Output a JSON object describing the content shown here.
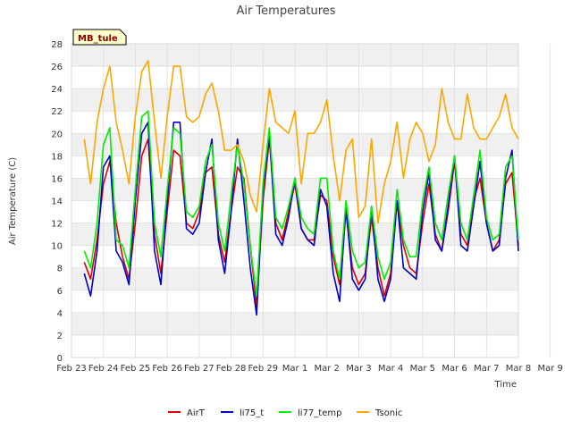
{
  "chart_data": {
    "type": "line",
    "title": "Air Temperatures",
    "xlabel": "Time",
    "ylabel": "Air Temperature (C)",
    "station_label": "MB_tule",
    "ylim": [
      0,
      28
    ],
    "y_ticks": [
      "0",
      "2",
      "4",
      "6",
      "8",
      "10",
      "12",
      "14",
      "16",
      "18",
      "20",
      "22",
      "24",
      "26",
      "28"
    ],
    "xlim": [
      0,
      14
    ],
    "x_ticks": [
      "Feb 23",
      "Feb 24",
      "Feb 25",
      "Feb 26",
      "Feb 27",
      "Feb 28",
      "Feb 29",
      "Mar 1",
      "Mar 2",
      "Mar 3",
      "Mar 4",
      "Mar 5",
      "Mar 6",
      "Mar 7",
      "Mar 8",
      "Mar 9"
    ],
    "grid": true,
    "legend_position": "bottom",
    "series": [
      {
        "name": "AirT",
        "color": "#dd0000",
        "x": [
          0.4,
          0.6,
          0.8,
          1.0,
          1.2,
          1.4,
          1.6,
          1.8,
          2.0,
          2.2,
          2.4,
          2.6,
          2.8,
          3.0,
          3.2,
          3.4,
          3.6,
          3.8,
          4.0,
          4.2,
          4.4,
          4.6,
          4.8,
          5.0,
          5.2,
          5.4,
          5.6,
          5.8,
          6.0,
          6.2,
          6.4,
          6.6,
          6.8,
          7.0,
          7.2,
          7.4,
          7.6,
          7.8,
          8.0,
          8.2,
          8.4,
          8.6,
          8.8,
          9.0,
          9.2,
          9.4,
          9.6,
          9.8,
          10.0,
          10.2,
          10.4,
          10.6,
          10.8,
          11.0,
          11.2,
          11.4,
          11.6,
          11.8,
          12.0,
          12.2,
          12.4,
          12.6,
          12.8,
          13.0,
          13.2,
          13.4,
          13.6,
          13.8,
          14.0
        ],
        "y": [
          8.5,
          7.0,
          10.5,
          15.5,
          17.5,
          12.0,
          9.0,
          7.0,
          12.0,
          18.0,
          19.5,
          11.0,
          7.5,
          13.0,
          18.5,
          18.0,
          12.0,
          11.5,
          13.0,
          16.5,
          17.0,
          11.0,
          8.5,
          13.0,
          17.0,
          16.0,
          10.0,
          4.5,
          14.0,
          19.5,
          12.0,
          10.5,
          13.0,
          15.5,
          11.5,
          10.5,
          10.5,
          14.5,
          14.0,
          9.0,
          6.5,
          13.0,
          8.0,
          6.5,
          7.5,
          12.5,
          8.0,
          5.5,
          7.5,
          14.0,
          10.0,
          8.0,
          7.5,
          12.0,
          15.5,
          11.0,
          9.5,
          13.0,
          17.5,
          11.0,
          10.0,
          14.0,
          16.0,
          12.0,
          9.5,
          10.5,
          15.5,
          16.5,
          10.0
        ]
      },
      {
        "name": "li75_t",
        "color": "#0000cc",
        "x": [
          0.4,
          0.6,
          0.8,
          1.0,
          1.2,
          1.4,
          1.6,
          1.8,
          2.0,
          2.2,
          2.4,
          2.6,
          2.8,
          3.0,
          3.2,
          3.4,
          3.6,
          3.8,
          4.0,
          4.2,
          4.4,
          4.6,
          4.8,
          5.0,
          5.2,
          5.4,
          5.6,
          5.8,
          6.0,
          6.2,
          6.4,
          6.6,
          6.8,
          7.0,
          7.2,
          7.4,
          7.6,
          7.8,
          8.0,
          8.2,
          8.4,
          8.6,
          8.8,
          9.0,
          9.2,
          9.4,
          9.6,
          9.8,
          10.0,
          10.2,
          10.4,
          10.6,
          10.8,
          11.0,
          11.2,
          11.4,
          11.6,
          11.8,
          12.0,
          12.2,
          12.4,
          12.6,
          12.8,
          13.0,
          13.2,
          13.4,
          13.6,
          13.8,
          14.0
        ],
        "y": [
          7.5,
          5.5,
          9.5,
          17.0,
          18.0,
          9.5,
          8.5,
          6.5,
          14.0,
          20.0,
          21.0,
          9.5,
          6.5,
          14.0,
          21.0,
          21.0,
          11.5,
          11.0,
          12.0,
          16.5,
          19.5,
          10.5,
          7.5,
          13.0,
          19.5,
          14.0,
          8.0,
          3.8,
          15.0,
          20.0,
          11.0,
          10.0,
          12.5,
          16.0,
          11.5,
          10.5,
          10.0,
          15.0,
          13.5,
          7.5,
          5.0,
          13.5,
          7.0,
          6.0,
          7.0,
          13.5,
          7.0,
          5.0,
          7.0,
          14.0,
          8.0,
          7.5,
          7.0,
          13.0,
          16.5,
          10.5,
          9.5,
          13.5,
          18.0,
          10.0,
          9.5,
          13.5,
          17.5,
          12.0,
          9.5,
          10.0,
          16.0,
          18.5,
          9.5
        ]
      },
      {
        "name": "li77_temp",
        "color": "#00ee00",
        "x": [
          0.4,
          0.6,
          0.8,
          1.0,
          1.2,
          1.4,
          1.6,
          1.8,
          2.0,
          2.2,
          2.4,
          2.6,
          2.8,
          3.0,
          3.2,
          3.4,
          3.6,
          3.8,
          4.0,
          4.2,
          4.4,
          4.6,
          4.8,
          5.0,
          5.2,
          5.4,
          5.6,
          5.8,
          6.0,
          6.2,
          6.4,
          6.6,
          6.8,
          7.0,
          7.2,
          7.4,
          7.6,
          7.8,
          8.0,
          8.2,
          8.4,
          8.6,
          8.8,
          9.0,
          9.2,
          9.4,
          9.6,
          9.8,
          10.0,
          10.2,
          10.4,
          10.6,
          10.8,
          11.0,
          11.2,
          11.4,
          11.6,
          11.8,
          12.0,
          12.2,
          12.4,
          12.6,
          12.8,
          13.0,
          13.2,
          13.4,
          13.6,
          13.8,
          14.0
        ],
        "y": [
          9.5,
          8.0,
          12.0,
          19.0,
          20.5,
          10.5,
          10.0,
          8.0,
          15.0,
          21.5,
          22.0,
          12.0,
          9.0,
          15.0,
          20.5,
          20.0,
          13.0,
          12.5,
          13.5,
          17.5,
          19.0,
          12.0,
          9.5,
          14.5,
          19.0,
          15.5,
          10.0,
          5.5,
          15.5,
          20.5,
          12.5,
          11.5,
          13.5,
          16.0,
          12.5,
          11.5,
          11.0,
          16.0,
          16.0,
          9.5,
          7.0,
          14.0,
          9.5,
          8.0,
          8.5,
          13.5,
          9.0,
          7.0,
          8.5,
          15.0,
          10.5,
          9.0,
          9.0,
          14.0,
          17.0,
          12.0,
          10.5,
          14.5,
          18.0,
          12.0,
          10.5,
          14.5,
          18.5,
          12.5,
          10.5,
          11.0,
          17.0,
          18.0,
          10.5
        ]
      },
      {
        "name": "Tsonic",
        "color": "#ffa500",
        "x": [
          0.4,
          0.6,
          0.8,
          1.0,
          1.2,
          1.4,
          1.6,
          1.8,
          2.0,
          2.2,
          2.4,
          2.6,
          2.8,
          3.0,
          3.2,
          3.4,
          3.6,
          3.8,
          4.0,
          4.2,
          4.4,
          4.6,
          4.8,
          5.0,
          5.2,
          5.4,
          5.6,
          5.8,
          6.0,
          6.2,
          6.4,
          6.6,
          6.8,
          7.0,
          7.2,
          7.4,
          7.6,
          7.8,
          8.0,
          8.2,
          8.4,
          8.6,
          8.8,
          9.0,
          9.2,
          9.4,
          9.6,
          9.8,
          10.0,
          10.2,
          10.4,
          10.6,
          10.8,
          11.0,
          11.2,
          11.4,
          11.6,
          11.8,
          12.0,
          12.2,
          12.4,
          12.6,
          12.8,
          13.0,
          13.2,
          13.4,
          13.6,
          13.8,
          14.0
        ],
        "y": [
          19.5,
          15.5,
          21.0,
          24.0,
          26.0,
          21.0,
          18.5,
          15.5,
          21.5,
          25.5,
          26.5,
          21.0,
          16.0,
          21.5,
          26.0,
          26.0,
          21.5,
          21.0,
          21.5,
          23.5,
          24.5,
          22.0,
          18.5,
          18.5,
          19.0,
          17.5,
          14.5,
          13.0,
          19.0,
          24.0,
          21.0,
          20.5,
          20.0,
          22.0,
          15.5,
          20.0,
          20.0,
          21.0,
          23.0,
          18.0,
          14.0,
          18.5,
          19.5,
          12.5,
          13.5,
          19.5,
          12.0,
          15.5,
          17.5,
          21.0,
          16.0,
          19.5,
          21.0,
          20.0,
          17.5,
          19.0,
          24.0,
          21.0,
          19.5,
          19.5,
          23.5,
          20.5,
          19.5,
          19.5,
          20.5,
          21.5,
          23.5,
          20.5,
          19.5
        ]
      }
    ]
  }
}
